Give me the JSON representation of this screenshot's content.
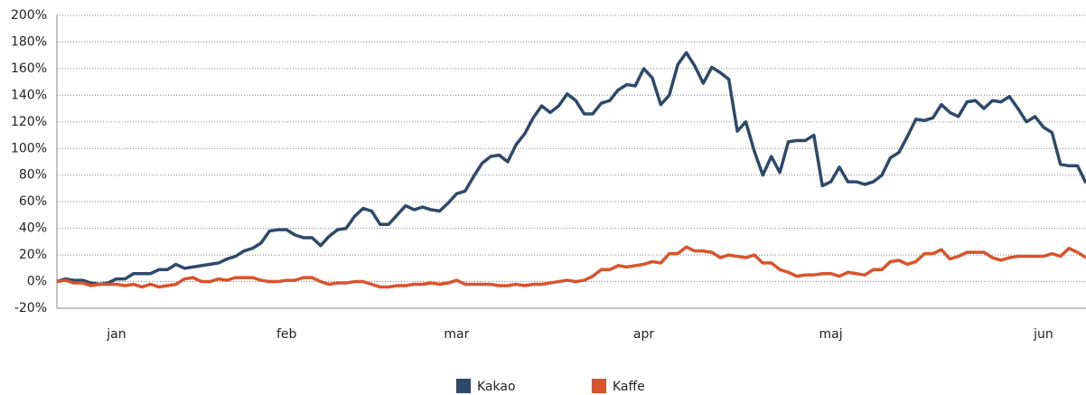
{
  "chart_data": {
    "type": "line",
    "categories": [
      null,
      null,
      null,
      null,
      null,
      null,
      null,
      "jan",
      null,
      null,
      null,
      null,
      null,
      null,
      null,
      null,
      null,
      null,
      null,
      null,
      null,
      null,
      null,
      null,
      null,
      null,
      null,
      "feb",
      null,
      null,
      null,
      null,
      null,
      null,
      null,
      null,
      null,
      null,
      null,
      null,
      null,
      null,
      null,
      null,
      null,
      null,
      null,
      "mar",
      null,
      null,
      null,
      null,
      null,
      null,
      null,
      null,
      null,
      null,
      null,
      null,
      null,
      null,
      null,
      null,
      null,
      null,
      null,
      null,
      null,
      "apr",
      null,
      null,
      null,
      null,
      null,
      null,
      null,
      null,
      null,
      null,
      null,
      null,
      null,
      null,
      null,
      null,
      null,
      null,
      null,
      null,
      null,
      "maj",
      null,
      null,
      null,
      null,
      null,
      null,
      null,
      null,
      null,
      null,
      null,
      null,
      null,
      null,
      null,
      null,
      null,
      null,
      null,
      null,
      null,
      null,
      null,
      null,
      "jun",
      null,
      null,
      null,
      null,
      null
    ],
    "series": [
      {
        "name": "Kakao",
        "color": "#2d4a6b",
        "values": [
          0,
          2,
          1,
          1,
          -1,
          -2,
          -1,
          2,
          2,
          6,
          6,
          6,
          9,
          9,
          13,
          10,
          11,
          12,
          13,
          14,
          17,
          19,
          23,
          25,
          29,
          38,
          39,
          39,
          35,
          33,
          33,
          27,
          34,
          39,
          40,
          49,
          55,
          53,
          43,
          43,
          50,
          57,
          54,
          56,
          54,
          53,
          59,
          66,
          68,
          79,
          89,
          94,
          95,
          90,
          103,
          111,
          123,
          132,
          127,
          132,
          141,
          136,
          126,
          126,
          134,
          136,
          144,
          148,
          147,
          160,
          153,
          133,
          140,
          163,
          172,
          162,
          149,
          161,
          157,
          152,
          113,
          120,
          98,
          80,
          94,
          82,
          105,
          106,
          106,
          110,
          72,
          75,
          86,
          75,
          75,
          73,
          75,
          80,
          93,
          97,
          109,
          122,
          121,
          123,
          133,
          127,
          124,
          135,
          136,
          130,
          136,
          135,
          139,
          130,
          120,
          124,
          116,
          112,
          88,
          87,
          87,
          74
        ]
      },
      {
        "name": "Kaffe",
        "color": "#d9532c",
        "values": [
          0,
          1,
          -1,
          -1,
          -3,
          -2,
          -2,
          -2,
          -3,
          -2,
          -4,
          -2,
          -4,
          -3,
          -2,
          2,
          3,
          0,
          0,
          2,
          1,
          3,
          3,
          3,
          1,
          0,
          0,
          1,
          1,
          3,
          3,
          0,
          -2,
          -1,
          -1,
          0,
          0,
          -2,
          -4,
          -4,
          -3,
          -3,
          -2,
          -2,
          -1,
          -2,
          -1,
          1,
          -2,
          -2,
          -2,
          -2,
          -3,
          -3,
          -2,
          -3,
          -2,
          -2,
          -1,
          0,
          1,
          0,
          1,
          4,
          9,
          9,
          12,
          11,
          12,
          13,
          15,
          14,
          21,
          21,
          26,
          23,
          23,
          22,
          18,
          20,
          19,
          18,
          20,
          14,
          14,
          9,
          7,
          4,
          5,
          5,
          6,
          6,
          4,
          7,
          6,
          5,
          9,
          9,
          15,
          16,
          13,
          15,
          21,
          21,
          24,
          17,
          19,
          22,
          22,
          22,
          18,
          16,
          18,
          19,
          19,
          19,
          19,
          21,
          19,
          25,
          22,
          18
        ]
      }
    ],
    "ylim": [
      -20,
      200
    ],
    "yticks": [
      {
        "value": -20,
        "label": "-20%"
      },
      {
        "value": 0,
        "label": "0%"
      },
      {
        "value": 20,
        "label": "20%"
      },
      {
        "value": 40,
        "label": "40%"
      },
      {
        "value": 60,
        "label": "60%"
      },
      {
        "value": 80,
        "label": "80%"
      },
      {
        "value": 100,
        "label": "100%"
      },
      {
        "value": 120,
        "label": "120%"
      },
      {
        "value": 140,
        "label": "140%"
      },
      {
        "value": 160,
        "label": "160%"
      },
      {
        "value": 180,
        "label": "180%"
      },
      {
        "value": 200,
        "label": "200%"
      }
    ],
    "grid": true,
    "legend": "bottom"
  }
}
